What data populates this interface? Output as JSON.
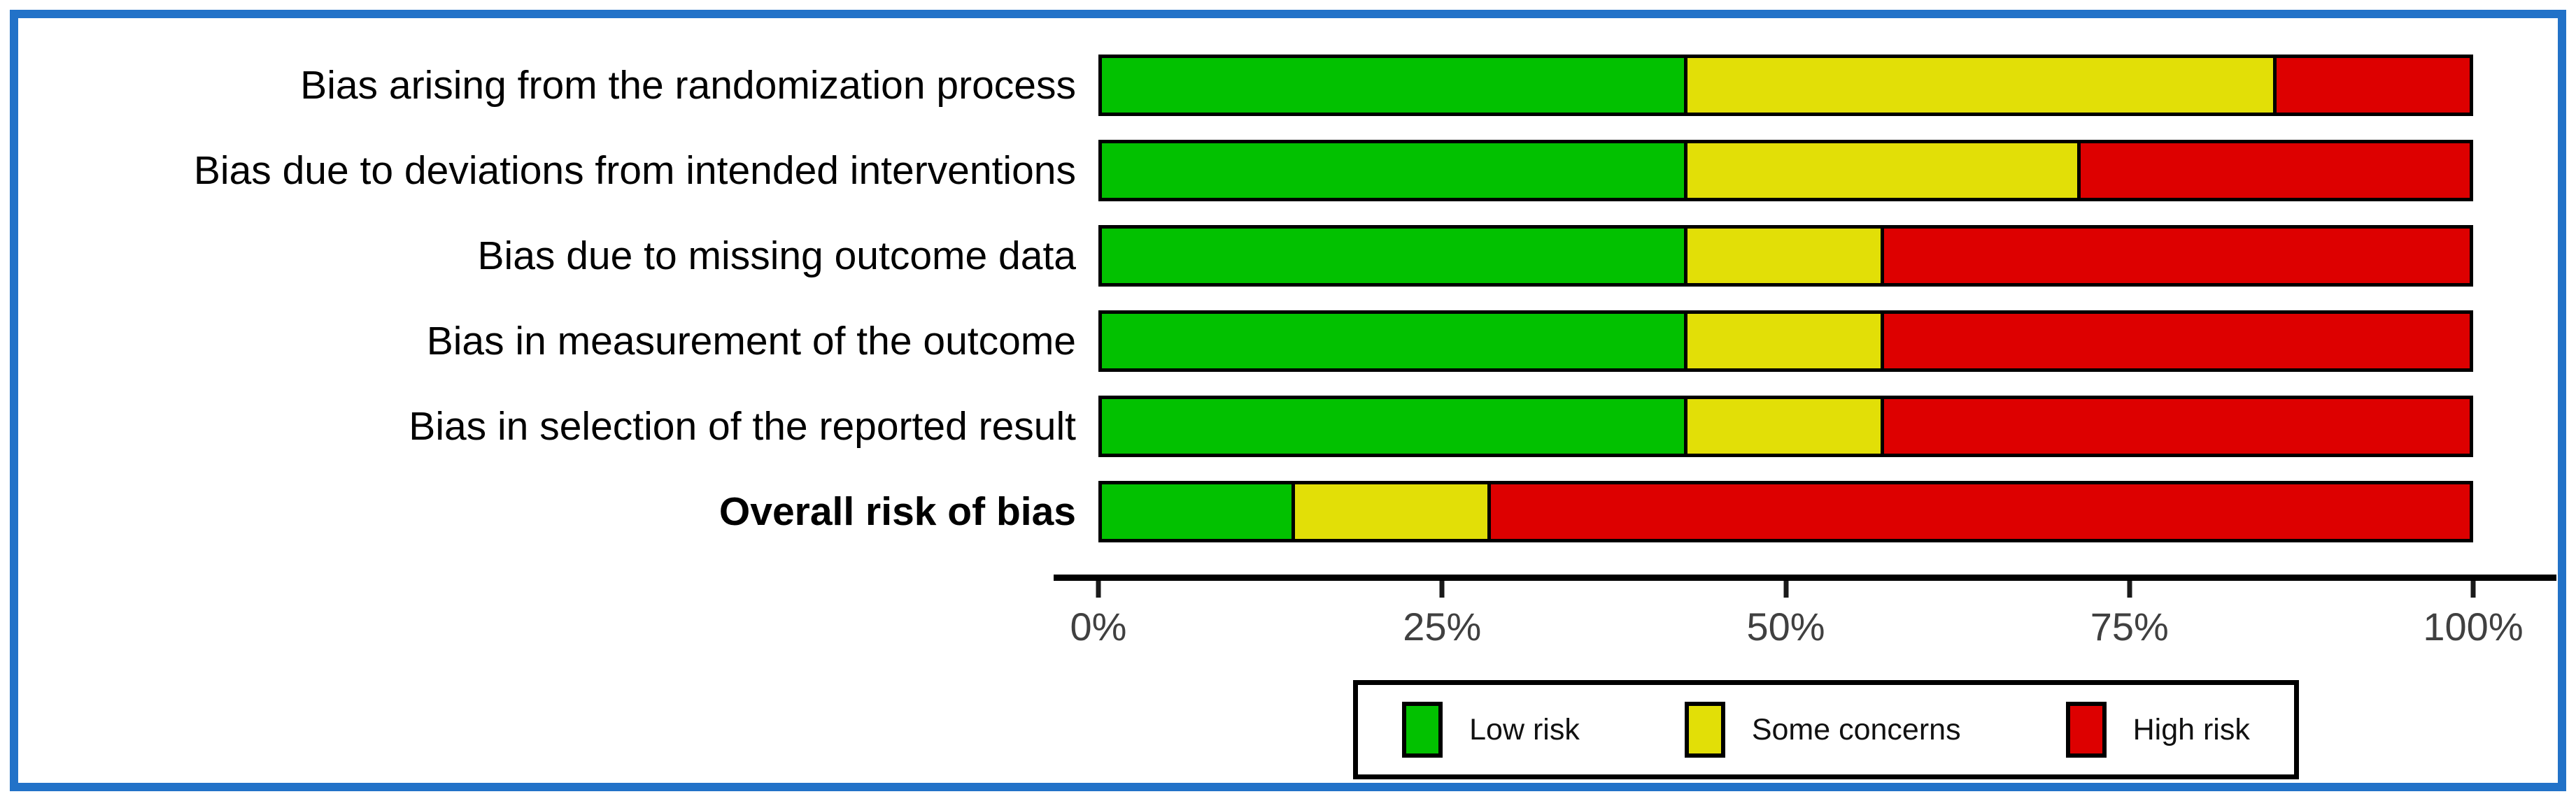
{
  "figure": {
    "background": "#FFFFFF",
    "border_color": "#2272C8"
  },
  "chart_data": {
    "type": "bar",
    "subtype": "horizontal-stacked-percentage",
    "title": "",
    "xlabel": "",
    "ylabel": "",
    "x_range": [
      0,
      100
    ],
    "grid": false,
    "categories": [
      {
        "label": "Bias arising from the randomization process",
        "bold": false
      },
      {
        "label": "Bias due to deviations from intended interventions",
        "bold": false
      },
      {
        "label": "Bias due to missing outcome data",
        "bold": false
      },
      {
        "label": "Bias in measurement of the outcome",
        "bold": false
      },
      {
        "label": "Bias in selection of the reported result",
        "bold": false
      },
      {
        "label": "Overall risk of bias",
        "bold": true
      }
    ],
    "series": [
      {
        "name": "Low risk",
        "color_key": "low",
        "values": [
          42.857,
          42.857,
          42.857,
          42.857,
          42.857,
          14.286
        ]
      },
      {
        "name": "Some concerns",
        "color_key": "some",
        "values": [
          42.857,
          28.571,
          14.286,
          14.286,
          14.286,
          14.286
        ]
      },
      {
        "name": "High risk",
        "color_key": "high",
        "values": [
          14.286,
          28.571,
          42.857,
          42.857,
          42.857,
          71.428
        ]
      }
    ],
    "colors": {
      "low": "#02C100",
      "some": "#E2DF07",
      "high": "#DD0000"
    },
    "x_axis": {
      "ticks": [
        {
          "value": 0,
          "label": "0%"
        },
        {
          "value": 25,
          "label": "25%"
        },
        {
          "value": 50,
          "label": "50%"
        },
        {
          "value": 75,
          "label": "75%"
        },
        {
          "value": 100,
          "label": "100%"
        }
      ]
    },
    "legend": {
      "position": "bottom",
      "items": [
        {
          "label": "Low risk",
          "color_key": "low"
        },
        {
          "label": "Some concerns",
          "color_key": "some"
        },
        {
          "label": "High risk",
          "color_key": "high"
        }
      ]
    }
  }
}
